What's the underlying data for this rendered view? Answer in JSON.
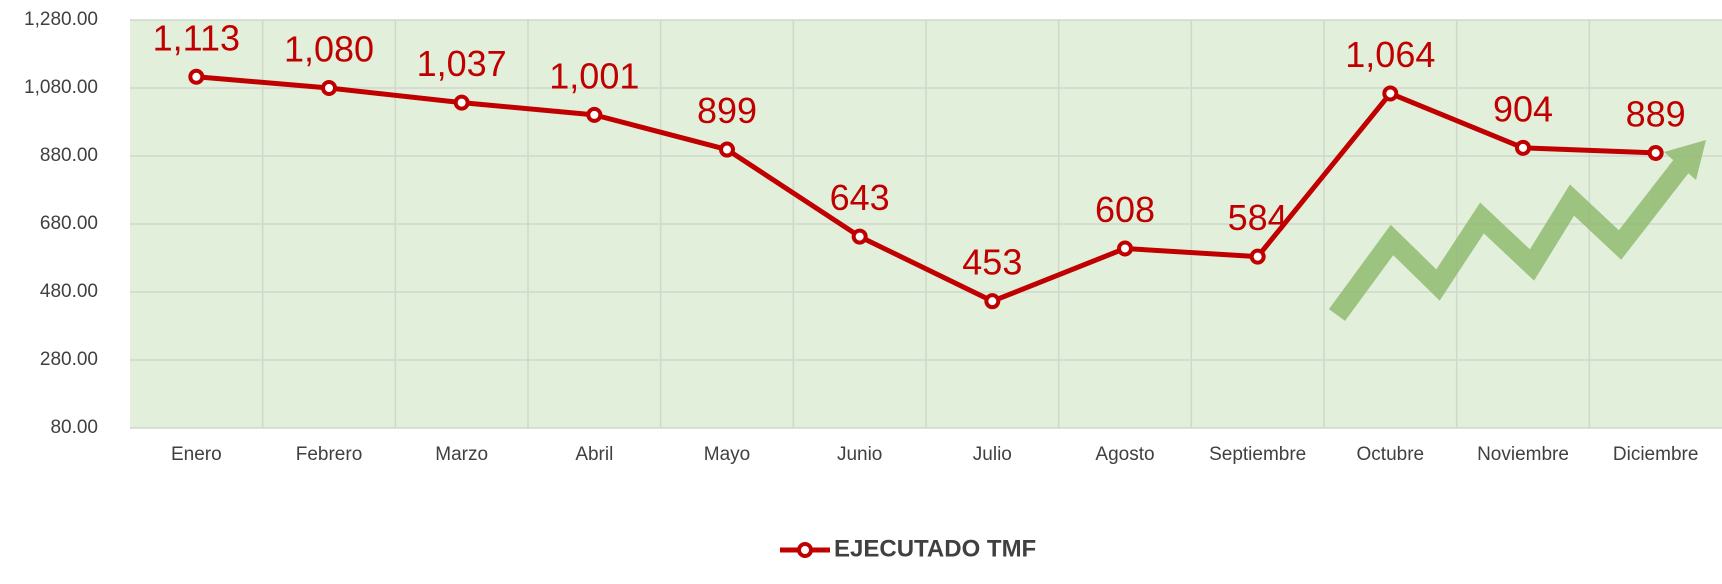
{
  "chart_data": {
    "type": "line",
    "categories": [
      "Enero",
      "Febrero",
      "Marzo",
      "Abril",
      "Mayo",
      "Junio",
      "Julio",
      "Agosto",
      "Septiembre",
      "Octubre",
      "Noviembre",
      "Diciembre"
    ],
    "series": [
      {
        "name": "EJECUTADO TMF",
        "color": "#c00000",
        "values": [
          1113,
          1080,
          1037,
          1001,
          899,
          643,
          453,
          608,
          584,
          1064,
          904,
          889
        ],
        "value_labels": [
          "1,113",
          "1,080",
          "1,037",
          "1,001",
          "899",
          "643",
          "453",
          "608",
          "584",
          "1,064",
          "904",
          "889"
        ]
      }
    ],
    "ylim": [
      80,
      1280
    ],
    "yticks": [
      {
        "value": 80,
        "label": "80.00"
      },
      {
        "value": 280,
        "label": "280.00"
      },
      {
        "value": 480,
        "label": "480.00"
      },
      {
        "value": 680,
        "label": "680.00"
      },
      {
        "value": 880,
        "label": "880.00"
      },
      {
        "value": 1080,
        "label": "1,080.00"
      },
      {
        "value": 1280,
        "label": "1,280.00"
      }
    ],
    "grid": true,
    "legend": "bottom"
  }
}
